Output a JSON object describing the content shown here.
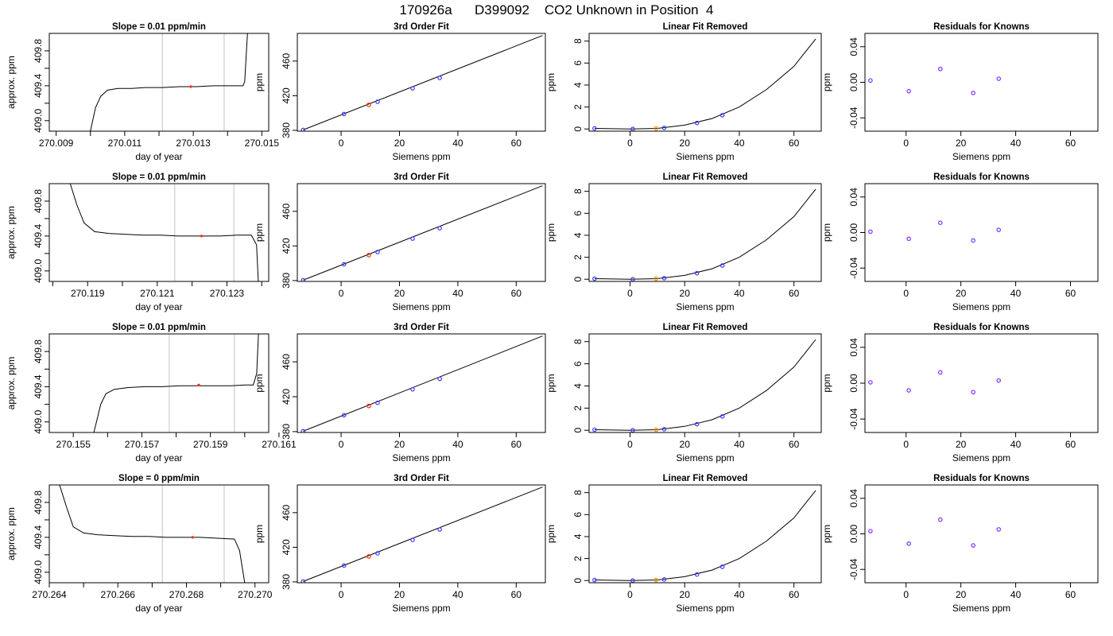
{
  "title": "170926a      D399092    CO2 Unknown in Position  4",
  "colors": {
    "known": "#3b3bff",
    "unknown": "#ff2a00",
    "unknown_linfit": "#ff8c00",
    "residual": "#7733ff",
    "window": "#cccccc",
    "curve": "#000000"
  },
  "rows": [
    {
      "panels": [
        {
          "kind": "trace",
          "title": "Slope =  0.01  ppm/min",
          "xlabel": "day of year",
          "ylabel": "approx. ppm",
          "x_ticks": [
            "270.009",
            "270.011",
            "270.013",
            "270.015"
          ],
          "y_ticks": [
            "409.0",
            "409.4",
            "409.8"
          ]
        },
        {
          "kind": "fit",
          "title": "3rd Order Fit",
          "xlabel": "Siemens ppm",
          "ylabel": "ppm",
          "x_ticks": [
            "0",
            "20",
            "40",
            "60"
          ],
          "y_ticks": [
            "380",
            "420",
            "460"
          ]
        },
        {
          "kind": "linear",
          "title": "Linear Fit Removed",
          "xlabel": "Siemens ppm",
          "ylabel": "ppm",
          "x_ticks": [
            "0",
            "20",
            "40",
            "60"
          ],
          "y_ticks": [
            "0",
            "2",
            "4",
            "6",
            "8"
          ]
        },
        {
          "kind": "resid",
          "title": "Residuals for Knowns",
          "xlabel": "Siemens ppm",
          "ylabel": "ppm",
          "x_ticks": [
            "0",
            "20",
            "40",
            "60"
          ],
          "y_ticks": [
            "-0.04",
            "0.00",
            "0.04"
          ]
        }
      ]
    },
    {
      "panels": [
        {
          "kind": "trace",
          "title": "Slope =  0.01  ppm/min",
          "xlabel": "day of year",
          "ylabel": "approx. ppm",
          "x_ticks": [
            "270.119",
            "270.121",
            "270.123"
          ],
          "y_ticks": [
            "409.0",
            "409.4",
            "409.8"
          ]
        },
        {
          "kind": "fit",
          "title": "3rd Order Fit",
          "xlabel": "Siemens ppm",
          "ylabel": "ppm",
          "x_ticks": [
            "0",
            "20",
            "40",
            "60"
          ],
          "y_ticks": [
            "380",
            "420",
            "460"
          ]
        },
        {
          "kind": "linear",
          "title": "Linear Fit Removed",
          "xlabel": "Siemens ppm",
          "ylabel": "ppm",
          "x_ticks": [
            "0",
            "20",
            "40",
            "60"
          ],
          "y_ticks": [
            "0",
            "2",
            "4",
            "6",
            "8"
          ]
        },
        {
          "kind": "resid",
          "title": "Residuals for Knowns",
          "xlabel": "Siemens ppm",
          "ylabel": "ppm",
          "x_ticks": [
            "0",
            "20",
            "40",
            "60"
          ],
          "y_ticks": [
            "-0.04",
            "0.00",
            "0.04"
          ]
        }
      ]
    },
    {
      "panels": [
        {
          "kind": "trace",
          "title": "Slope =  0.01  ppm/min",
          "xlabel": "day of year",
          "ylabel": "approx. ppm",
          "x_ticks": [
            "270.155",
            "270.157",
            "270.159",
            "270.161"
          ],
          "y_ticks": [
            "409.0",
            "409.4",
            "409.8"
          ]
        },
        {
          "kind": "fit",
          "title": "3rd Order Fit",
          "xlabel": "Siemens ppm",
          "ylabel": "ppm",
          "x_ticks": [
            "0",
            "20",
            "40",
            "60"
          ],
          "y_ticks": [
            "380",
            "420",
            "460"
          ]
        },
        {
          "kind": "linear",
          "title": "Linear Fit Removed",
          "xlabel": "Siemens ppm",
          "ylabel": "ppm",
          "x_ticks": [
            "0",
            "20",
            "40",
            "60"
          ],
          "y_ticks": [
            "0",
            "2",
            "4",
            "6",
            "8"
          ]
        },
        {
          "kind": "resid",
          "title": "Residuals for Knowns",
          "xlabel": "Siemens ppm",
          "ylabel": "ppm",
          "x_ticks": [
            "0",
            "20",
            "40",
            "60"
          ],
          "y_ticks": [
            "-0.04",
            "0.00",
            "0.04"
          ]
        }
      ]
    },
    {
      "panels": [
        {
          "kind": "trace",
          "title": "Slope =  0  ppm/min",
          "xlabel": "day of year",
          "ylabel": "approx. ppm",
          "x_ticks": [
            "270.264",
            "270.266",
            "270.268",
            "270.270"
          ],
          "y_ticks": [
            "409.0",
            "409.4",
            "409.8"
          ]
        },
        {
          "kind": "fit",
          "title": "3rd Order Fit",
          "xlabel": "Siemens ppm",
          "ylabel": "ppm",
          "x_ticks": [
            "0",
            "20",
            "40",
            "60"
          ],
          "y_ticks": [
            "380",
            "420",
            "460"
          ]
        },
        {
          "kind": "linear",
          "title": "Linear Fit Removed",
          "xlabel": "Siemens ppm",
          "ylabel": "ppm",
          "x_ticks": [
            "0",
            "20",
            "40",
            "60"
          ],
          "y_ticks": [
            "0",
            "2",
            "4",
            "6",
            "8"
          ]
        },
        {
          "kind": "resid",
          "title": "Residuals for Knowns",
          "xlabel": "Siemens ppm",
          "ylabel": "ppm",
          "x_ticks": [
            "0",
            "20",
            "40",
            "60"
          ],
          "y_ticks": [
            "-0.04",
            "0.00",
            "0.04"
          ]
        }
      ]
    }
  ],
  "chart_data": [
    {
      "type": "line",
      "panel": "trace",
      "row": 1,
      "title": "Slope =  0.01  ppm/min",
      "xlabel": "day of year",
      "ylabel": "approx. ppm",
      "xlim": [
        270.0088,
        270.0152
      ],
      "ylim": [
        408.88,
        410.0
      ],
      "window": [
        270.0121,
        270.0139
      ],
      "unknown_point": {
        "x": 270.01293,
        "y": 409.39
      },
      "trace": [
        [
          270.01,
          408.88
        ],
        [
          270.01015,
          409.15
        ],
        [
          270.0103,
          409.28
        ],
        [
          270.0105,
          409.35
        ],
        [
          270.0108,
          409.37
        ],
        [
          270.0112,
          409.37
        ],
        [
          270.0116,
          409.38
        ],
        [
          270.0121,
          409.38
        ],
        [
          270.0126,
          409.39
        ],
        [
          270.0131,
          409.39
        ],
        [
          270.0136,
          409.4
        ],
        [
          270.0141,
          409.4
        ],
        [
          270.01445,
          409.4
        ],
        [
          270.0145,
          409.45
        ],
        [
          270.01458,
          410.0
        ]
      ]
    },
    {
      "type": "line",
      "panel": "trace",
      "row": 2,
      "title": "Slope =  0.01  ppm/min",
      "xlabel": "day of year",
      "ylabel": "approx. ppm",
      "xlim": [
        270.1179,
        270.1242
      ],
      "ylim": [
        408.88,
        410.0
      ],
      "window": [
        270.1215,
        270.1232
      ],
      "unknown_point": {
        "x": 270.12227,
        "y": 409.4
      },
      "trace": [
        [
          270.1185,
          410.0
        ],
        [
          270.1187,
          409.75
        ],
        [
          270.1189,
          409.55
        ],
        [
          270.1192,
          409.45
        ],
        [
          270.1196,
          409.43
        ],
        [
          270.1201,
          409.42
        ],
        [
          270.1206,
          409.41
        ],
        [
          270.1211,
          409.41
        ],
        [
          270.1216,
          409.4
        ],
        [
          270.1222,
          409.4
        ],
        [
          270.1228,
          409.4
        ],
        [
          270.1233,
          409.41
        ],
        [
          270.1237,
          409.41
        ],
        [
          270.12385,
          409.3
        ],
        [
          270.1239,
          408.88
        ]
      ]
    },
    {
      "type": "line",
      "panel": "trace",
      "row": 3,
      "title": "Slope =  0.01  ppm/min",
      "xlabel": "day of year",
      "ylabel": "approx. ppm",
      "xlim": [
        270.1543,
        270.1607
      ],
      "ylim": [
        408.88,
        410.0
      ],
      "window": [
        270.1578,
        270.1597
      ],
      "unknown_point": {
        "x": 270.15866,
        "y": 409.42
      },
      "trace": [
        [
          270.1556,
          408.88
        ],
        [
          270.1558,
          409.2
        ],
        [
          270.15595,
          409.32
        ],
        [
          270.1562,
          409.37
        ],
        [
          270.1566,
          409.39
        ],
        [
          270.1571,
          409.4
        ],
        [
          270.1576,
          409.4
        ],
        [
          270.1581,
          409.41
        ],
        [
          270.1586,
          409.41
        ],
        [
          270.1591,
          409.41
        ],
        [
          270.1596,
          409.41
        ],
        [
          270.16,
          409.42
        ],
        [
          270.16025,
          409.42
        ],
        [
          270.16035,
          409.55
        ],
        [
          270.1604,
          410.0
        ]
      ]
    },
    {
      "type": "line",
      "panel": "trace",
      "row": 4,
      "title": "Slope =  0  ppm/min",
      "xlabel": "day of year",
      "ylabel": "approx. ppm",
      "xlim": [
        270.264,
        270.2704
      ],
      "ylim": [
        408.88,
        410.0
      ],
      "window": [
        270.2673,
        270.2691
      ],
      "unknown_point": {
        "x": 270.26818,
        "y": 409.4
      },
      "trace": [
        [
          270.2643,
          410.0
        ],
        [
          270.2645,
          409.75
        ],
        [
          270.2647,
          409.52
        ],
        [
          270.265,
          409.45
        ],
        [
          270.2654,
          409.43
        ],
        [
          270.2659,
          409.42
        ],
        [
          270.2664,
          409.41
        ],
        [
          270.2669,
          409.41
        ],
        [
          270.2674,
          409.4
        ],
        [
          270.2679,
          409.4
        ],
        [
          270.2684,
          409.4
        ],
        [
          270.2689,
          409.39
        ],
        [
          270.2694,
          409.38
        ],
        [
          270.26955,
          409.25
        ],
        [
          270.2697,
          408.88
        ]
      ]
    },
    {
      "type": "scatter",
      "panel": "fit",
      "title": "3rd Order Fit",
      "xlabel": "Siemens ppm",
      "ylabel": "ppm",
      "xlim": [
        -15,
        70
      ],
      "ylim": [
        379,
        492
      ],
      "curve": [
        [
          -13,
          380.5
        ],
        [
          69,
          489.5
        ]
      ],
      "knowns": [
        [
          -13,
          380.5
        ],
        [
          1,
          398.8
        ],
        [
          12.5,
          413.0
        ],
        [
          24.5,
          428.5
        ],
        [
          33.8,
          440.5
        ]
      ],
      "unknown": [
        9.5,
        409.4
      ]
    },
    {
      "type": "scatter",
      "panel": "linear",
      "title": "Linear Fit Removed",
      "xlabel": "Siemens ppm",
      "ylabel": "ppm",
      "xlim": [
        -15,
        70
      ],
      "ylim": [
        -0.2,
        8.7
      ],
      "curve": [
        [
          -13,
          0.05
        ],
        [
          0,
          0.0
        ],
        [
          10,
          0.05
        ],
        [
          20,
          0.35
        ],
        [
          30,
          0.95
        ],
        [
          40,
          2.0
        ],
        [
          50,
          3.6
        ],
        [
          60,
          5.7
        ],
        [
          68,
          8.2
        ]
      ],
      "knowns": [
        [
          -13,
          0.05
        ],
        [
          1,
          0.0
        ],
        [
          12.5,
          0.1
        ],
        [
          24.5,
          0.55
        ],
        [
          33.8,
          1.25
        ]
      ],
      "unknown": [
        9.5,
        0.05
      ]
    },
    {
      "type": "scatter",
      "panel": "resid",
      "title": "Residuals for Knowns",
      "xlabel": "Siemens ppm",
      "ylabel": "ppm",
      "xlim": [
        -15,
        70
      ],
      "ylim": [
        -0.055,
        0.055
      ],
      "rows": [
        [
          [
            -13,
            0.002
          ],
          [
            1,
            -0.01
          ],
          [
            12.5,
            0.015
          ],
          [
            24.5,
            -0.012
          ],
          [
            33.8,
            0.004
          ]
        ],
        [
          [
            -13,
            0.001
          ],
          [
            1,
            -0.007
          ],
          [
            12.5,
            0.011
          ],
          [
            24.5,
            -0.009
          ],
          [
            33.8,
            0.003
          ]
        ],
        [
          [
            -13,
            0.001
          ],
          [
            1,
            -0.008
          ],
          [
            12.5,
            0.012
          ],
          [
            24.5,
            -0.01
          ],
          [
            33.8,
            0.003
          ]
        ],
        [
          [
            -13,
            0.003
          ],
          [
            1,
            -0.011
          ],
          [
            12.5,
            0.016
          ],
          [
            24.5,
            -0.013
          ],
          [
            33.8,
            0.005
          ]
        ]
      ]
    }
  ]
}
